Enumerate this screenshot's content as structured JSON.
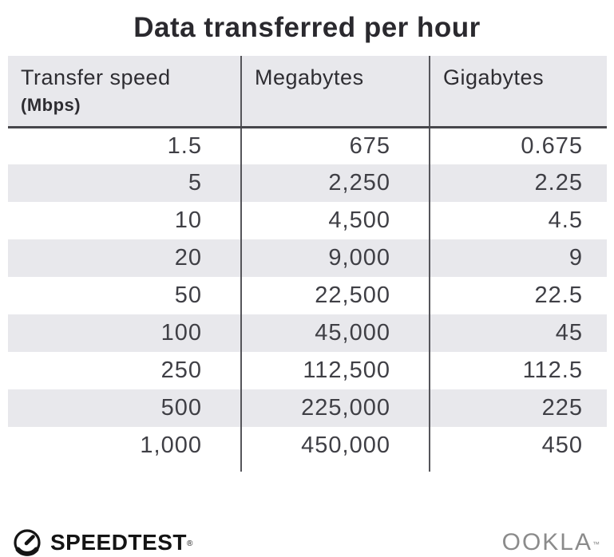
{
  "title": "Data transferred per hour",
  "table": {
    "columns": [
      {
        "label": "Transfer speed",
        "sublabel": "(Mbps)"
      },
      {
        "label": "Megabytes",
        "sublabel": ""
      },
      {
        "label": "Gigabytes",
        "sublabel": ""
      }
    ],
    "rows": [
      [
        "1.5",
        "675",
        "0.675"
      ],
      [
        "5",
        "2,250",
        "2.25"
      ],
      [
        "10",
        "4,500",
        "4.5"
      ],
      [
        "20",
        "9,000",
        "9"
      ],
      [
        "50",
        "22,500",
        "22.5"
      ],
      [
        "100",
        "45,000",
        "45"
      ],
      [
        "250",
        "112,500",
        "112.5"
      ],
      [
        "500",
        "225,000",
        "225"
      ],
      [
        "1,000",
        "450,000",
        "450"
      ]
    ]
  },
  "chart_data": {
    "type": "table",
    "title": "Data transferred per hour",
    "columns": [
      "Transfer speed (Mbps)",
      "Megabytes",
      "Gigabytes"
    ],
    "rows": [
      [
        1.5,
        675,
        0.675
      ],
      [
        5,
        2250,
        2.25
      ],
      [
        10,
        4500,
        4.5
      ],
      [
        20,
        9000,
        9
      ],
      [
        50,
        22500,
        22.5
      ],
      [
        100,
        45000,
        45
      ],
      [
        250,
        112500,
        112.5
      ],
      [
        500,
        225000,
        225
      ],
      [
        1000,
        450000,
        450
      ]
    ]
  },
  "footer": {
    "speedtest_label": "SPEEDTEST",
    "speedtest_trademark": "®",
    "ookla_label": "OOKLA",
    "ookla_trademark": "™"
  },
  "icons": {
    "speedtest_gauge": "gauge-icon"
  },
  "colors": {
    "background": "#ffffff",
    "header_bg": "#e8e8ec",
    "stripe_bg": "#e8e8ec",
    "title_text": "#2a292e",
    "header_text": "#2e2d32",
    "data_text": "#3f3f45",
    "column_divider": "#55555a",
    "header_rule": "#47474c",
    "speedtest_black": "#141414",
    "ookla_gray": "#8b8b8b"
  }
}
